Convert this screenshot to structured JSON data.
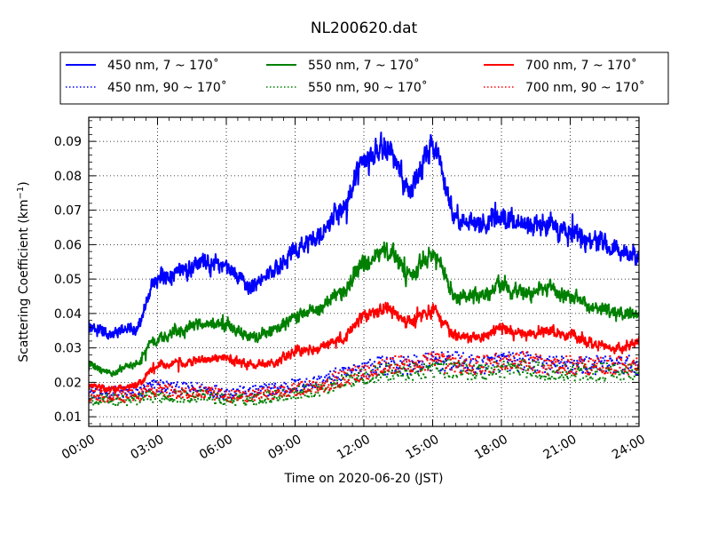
{
  "chart_data": {
    "type": "line",
    "title": "NL200620.dat",
    "xlabel": "Time on 2020-06-20 (JST)",
    "ylabel": "Scattering Coefficient (km",
    "ylabel_sup": "−1",
    "ylabel_end": ")",
    "xlim": [
      0,
      24
    ],
    "ylim": [
      0.0072,
      0.097
    ],
    "x_ticks": [
      0,
      3,
      6,
      9,
      12,
      15,
      18,
      21,
      24
    ],
    "x_tick_labels": [
      "00:00",
      "03:00",
      "06:00",
      "09:00",
      "12:00",
      "15:00",
      "18:00",
      "21:00",
      "24:00"
    ],
    "y_ticks": [
      0.01,
      0.02,
      0.03,
      0.04,
      0.05,
      0.06,
      0.07,
      0.08,
      0.09
    ],
    "y_tick_labels": [
      "0.01",
      "0.02",
      "0.03",
      "0.04",
      "0.05",
      "0.06",
      "0.07",
      "0.08",
      "0.09"
    ],
    "grid": true,
    "legend_position": "above plot, 3 columns",
    "x_hours": [
      0,
      1,
      2,
      3,
      4,
      5,
      6,
      7,
      8,
      9,
      10,
      11,
      12,
      13,
      14,
      15,
      16,
      17,
      18,
      19,
      20,
      21,
      22,
      23,
      24
    ],
    "series": [
      {
        "name": "450 nm, 7 ~ 170˚",
        "color": "#0000ff",
        "style": "solid",
        "values": [
          0.036,
          0.034,
          0.036,
          0.05,
          0.052,
          0.055,
          0.054,
          0.048,
          0.052,
          0.058,
          0.062,
          0.07,
          0.084,
          0.088,
          0.077,
          0.089,
          0.068,
          0.066,
          0.068,
          0.066,
          0.066,
          0.064,
          0.061,
          0.059,
          0.057
        ]
      },
      {
        "name": "550 nm, 7 ~ 170˚",
        "color": "#008000",
        "style": "solid",
        "values": [
          0.025,
          0.023,
          0.025,
          0.033,
          0.035,
          0.037,
          0.037,
          0.033,
          0.035,
          0.039,
          0.041,
          0.046,
          0.055,
          0.058,
          0.051,
          0.058,
          0.045,
          0.045,
          0.048,
          0.046,
          0.047,
          0.045,
          0.042,
          0.04,
          0.04
        ]
      },
      {
        "name": "700 nm, 7 ~ 170˚",
        "color": "#ff0000",
        "style": "solid",
        "values": [
          0.019,
          0.018,
          0.019,
          0.025,
          0.026,
          0.027,
          0.027,
          0.025,
          0.026,
          0.029,
          0.03,
          0.033,
          0.039,
          0.042,
          0.037,
          0.041,
          0.033,
          0.033,
          0.036,
          0.034,
          0.035,
          0.034,
          0.031,
          0.03,
          0.032
        ]
      },
      {
        "name": "450 nm, 90 ~ 170˚",
        "color": "#0000ff",
        "style": "dotted",
        "values": [
          0.017,
          0.017,
          0.017,
          0.019,
          0.018,
          0.018,
          0.017,
          0.017,
          0.018,
          0.019,
          0.02,
          0.022,
          0.024,
          0.025,
          0.025,
          0.026,
          0.026,
          0.025,
          0.026,
          0.026,
          0.025,
          0.025,
          0.025,
          0.025,
          0.025
        ]
      },
      {
        "name": "550 nm, 90 ~ 170˚",
        "color": "#008000",
        "style": "dotted",
        "values": [
          0.015,
          0.015,
          0.015,
          0.016,
          0.016,
          0.016,
          0.015,
          0.015,
          0.016,
          0.017,
          0.018,
          0.02,
          0.022,
          0.023,
          0.023,
          0.024,
          0.024,
          0.023,
          0.024,
          0.024,
          0.023,
          0.023,
          0.023,
          0.023,
          0.023
        ]
      },
      {
        "name": "700 nm, 90 ~ 170˚",
        "color": "#ff0000",
        "style": "dotted",
        "values": [
          0.016,
          0.016,
          0.016,
          0.018,
          0.017,
          0.017,
          0.016,
          0.016,
          0.017,
          0.018,
          0.019,
          0.021,
          0.023,
          0.025,
          0.025,
          0.026,
          0.025,
          0.025,
          0.026,
          0.026,
          0.025,
          0.025,
          0.025,
          0.025,
          0.025
        ]
      }
    ]
  }
}
